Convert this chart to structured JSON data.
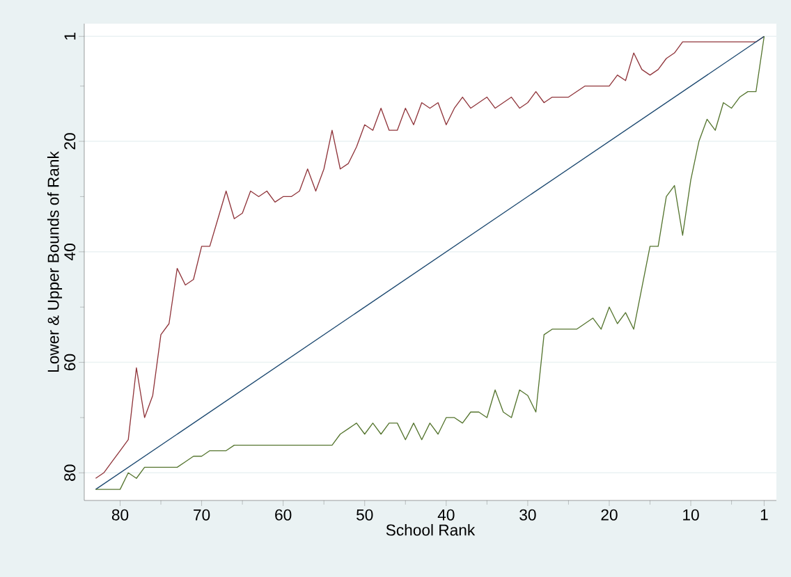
{
  "chart_data": {
    "type": "line",
    "xlabel": "School Rank",
    "ylabel": "Lower & Upper Bounds of Rank",
    "xlim": [
      84.4,
      -0.5
    ],
    "ylim": [
      85,
      -1.3
    ],
    "xticks": [
      80,
      {
        "value": 75,
        "label": null
      },
      70,
      {
        "value": 65,
        "label": null
      },
      60,
      {
        "value": 55,
        "label": null
      },
      50,
      {
        "value": 45,
        "label": null
      },
      40,
      {
        "value": 35,
        "label": null
      },
      30,
      {
        "value": 25,
        "label": null
      },
      20,
      {
        "value": 15,
        "label": null
      },
      10,
      {
        "value": 5,
        "label": null
      },
      1
    ],
    "yticks": [
      1,
      {
        "value": 10,
        "label": null
      },
      20,
      {
        "value": 30,
        "label": null
      },
      40,
      {
        "value": 50,
        "label": null
      },
      60,
      {
        "value": 70,
        "label": null
      },
      80
    ],
    "grid": "y",
    "marker": "none",
    "line_style": "solid",
    "series": [
      {
        "color": "#90353b",
        "x": [
          83,
          82,
          81,
          80,
          79,
          78,
          77,
          76,
          75,
          74,
          73,
          72,
          71,
          70,
          69,
          68,
          67,
          66,
          65,
          64,
          63,
          62,
          61,
          60,
          59,
          58,
          57,
          56,
          55,
          54,
          53,
          52,
          51,
          50,
          49,
          48,
          47,
          46,
          45,
          44,
          43,
          42,
          41,
          40,
          39,
          38,
          37,
          36,
          35,
          34,
          33,
          32,
          31,
          30,
          29,
          28,
          27,
          25,
          23,
          20,
          19,
          18,
          17,
          16,
          15,
          14,
          13,
          12,
          11,
          2,
          1
        ],
        "values": [
          81,
          80,
          78,
          76,
          74,
          61,
          70,
          66,
          55,
          53,
          43,
          46,
          45,
          39,
          39,
          34,
          29,
          34,
          33,
          29,
          30,
          29,
          31,
          30,
          30,
          29,
          25,
          29,
          25,
          18,
          25,
          24,
          21,
          17,
          18,
          14,
          18,
          18,
          14,
          17,
          13,
          14,
          13,
          17,
          14,
          12,
          14,
          13,
          12,
          14,
          13,
          12,
          14,
          13,
          11,
          13,
          12,
          12,
          10,
          10,
          8,
          9,
          4,
          7,
          8,
          7,
          5,
          4,
          2,
          2,
          1
        ]
      },
      {
        "color": "#1a476f",
        "x": [
          83,
          1
        ],
        "values": [
          83,
          1
        ]
      },
      {
        "color": "#55752f",
        "x": [
          83,
          80,
          79,
          78,
          77,
          73,
          72,
          71,
          70,
          69,
          67,
          66,
          54,
          53,
          52,
          51,
          50,
          49,
          48,
          47,
          46,
          45,
          44,
          43,
          42,
          41,
          40,
          39,
          38,
          37,
          36,
          35,
          34,
          33,
          32,
          31,
          30,
          29,
          28,
          27,
          24,
          23,
          22,
          21,
          20,
          19,
          18,
          17,
          15,
          14,
          13,
          12,
          11,
          10,
          9,
          8,
          7,
          6,
          5,
          4,
          3,
          2,
          1
        ],
        "values": [
          83,
          83,
          80,
          81,
          79,
          79,
          78,
          77,
          77,
          76,
          76,
          75,
          75,
          73,
          72,
          71,
          73,
          71,
          73,
          71,
          71,
          74,
          71,
          74,
          71,
          73,
          70,
          70,
          71,
          69,
          69,
          70,
          65,
          69,
          70,
          65,
          66,
          69,
          55,
          54,
          54,
          53,
          52,
          54,
          50,
          53,
          51,
          54,
          39,
          39,
          30,
          28,
          37,
          27,
          20,
          16,
          18,
          13,
          14,
          12,
          11,
          11,
          1
        ]
      }
    ]
  }
}
